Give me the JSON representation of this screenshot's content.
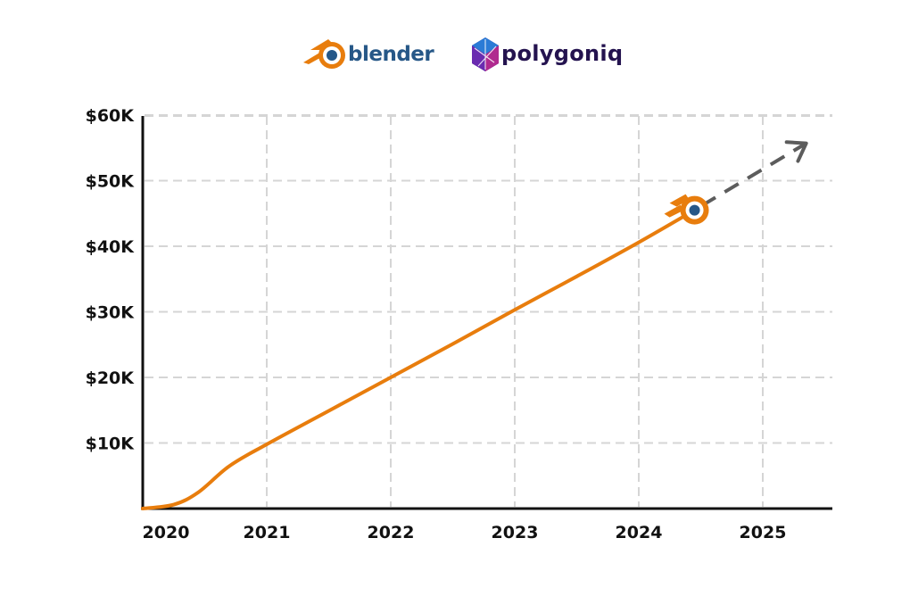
{
  "logos": {
    "blender_text": "blender",
    "polygoniq_text": "polygoniq"
  },
  "colors": {
    "line": "#e87d0d",
    "projection": "#5c5c5c",
    "grid": "#d5d5d5",
    "axis": "#111111",
    "blender_blue": "#265787",
    "polygoniq_purple": "#24134f"
  },
  "chart_data": {
    "type": "line",
    "title": "",
    "xlabel": "",
    "ylabel": "",
    "x_ticks": [
      "2020",
      "2021",
      "2022",
      "2023",
      "2024",
      "2025"
    ],
    "y_ticks": [
      "$10K",
      "$20K",
      "$30K",
      "$40K",
      "$50K",
      "$60K"
    ],
    "xlim": [
      2020,
      2025.55
    ],
    "ylim": [
      0,
      60000
    ],
    "grid": true,
    "series": [
      {
        "kind": "actual",
        "x": [
          2020.0,
          2020.25,
          2020.45,
          2020.7,
          2021.0,
          2021.5,
          2022.0,
          2022.5,
          2023.0,
          2023.5,
          2024.0,
          2024.45
        ],
        "y": [
          0,
          600,
          2500,
          6500,
          9800,
          14900,
          20000,
          25100,
          30300,
          35400,
          40600,
          45500
        ]
      },
      {
        "kind": "projection",
        "x": [
          2024.45,
          2025.35
        ],
        "y": [
          45500,
          55700
        ]
      }
    ]
  }
}
